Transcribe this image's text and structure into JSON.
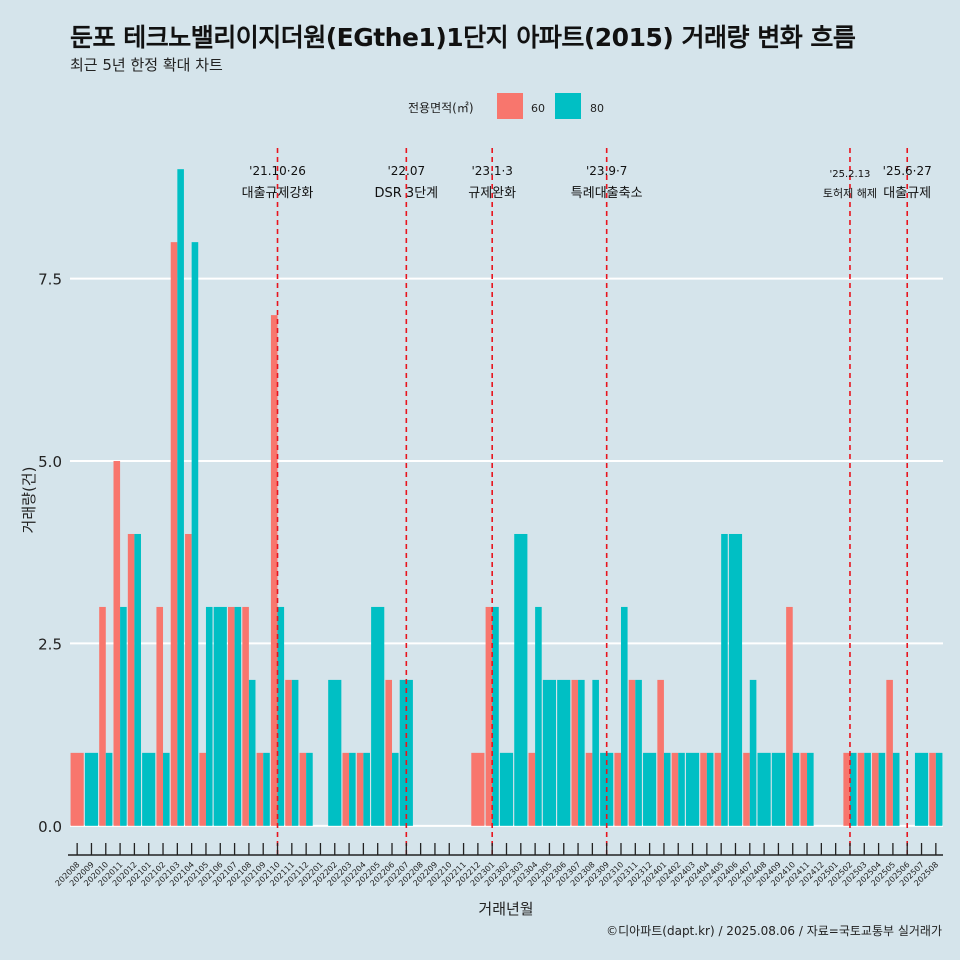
{
  "title": "둔포 테크노밸리이지더원(EGthe1)1단지 아파트(2015) 거래량 변화 흐름",
  "subtitle": "최근 5년 한정 확대 차트",
  "caption": "©디아파트(dapt.kr) / 2025.08.06 / 자료=국토교통부 실거래가",
  "colors": {
    "s60": "#f8766d",
    "s80": "#00bfc4",
    "vline": "#e8141e",
    "grid": "#ffffff",
    "background": "#d5e4eb"
  },
  "chart_data": {
    "type": "bar",
    "title": "둔포 테크노밸리이지더원(EGthe1)1단지 아파트(2015) 거래량 변화 흐름",
    "xlabel": "거래년월",
    "ylabel": "거래량(건)",
    "ylim": [
      -0.4,
      9.4
    ],
    "yticks": [
      0.0,
      2.5,
      5.0,
      7.5
    ],
    "ytick_labels": [
      "0.0",
      "2.5",
      "5.0",
      "7.5"
    ],
    "legend": {
      "title": "전용면적(㎡)",
      "position": "top",
      "labels": [
        "60",
        "80"
      ]
    },
    "categories": [
      "202008",
      "202009",
      "202010",
      "202011",
      "202012",
      "202101",
      "202102",
      "202103",
      "202104",
      "202105",
      "202106",
      "202107",
      "202108",
      "202109",
      "202110",
      "202111",
      "202112",
      "202201",
      "202202",
      "202203",
      "202204",
      "202205",
      "202206",
      "202207",
      "202208",
      "202209",
      "202210",
      "202211",
      "202212",
      "202301",
      "202302",
      "202303",
      "202304",
      "202305",
      "202306",
      "202307",
      "202308",
      "202309",
      "202310",
      "202311",
      "202312",
      "202401",
      "202402",
      "202403",
      "202404",
      "202405",
      "202406",
      "202407",
      "202408",
      "202409",
      "202410",
      "202411",
      "202412",
      "202501",
      "202502",
      "202503",
      "202504",
      "202505",
      "202506",
      "202507",
      "202508"
    ],
    "series": [
      {
        "name": "60",
        "values": [
          1,
          0,
          3,
          5,
          4,
          0,
          3,
          8,
          4,
          1,
          0,
          3,
          3,
          1,
          7,
          2,
          1,
          0,
          0,
          1,
          1,
          0,
          2,
          0,
          0,
          0,
          0,
          0,
          1,
          3,
          0,
          0,
          1,
          0,
          0,
          2,
          1,
          0,
          1,
          2,
          0,
          2,
          1,
          0,
          1,
          1,
          0,
          1,
          0,
          0,
          3,
          1,
          0,
          0,
          1,
          1,
          1,
          2,
          0,
          0,
          1
        ]
      },
      {
        "name": "80",
        "values": [
          0,
          1,
          1,
          3,
          4,
          1,
          1,
          9,
          8,
          3,
          3,
          3,
          2,
          1,
          3,
          2,
          1,
          0,
          2,
          1,
          1,
          3,
          1,
          2,
          0,
          0,
          0,
          0,
          0,
          3,
          1,
          4,
          3,
          2,
          2,
          2,
          2,
          1,
          3,
          2,
          1,
          1,
          1,
          1,
          1,
          4,
          4,
          2,
          1,
          1,
          1,
          1,
          0,
          0,
          1,
          1,
          1,
          1,
          0,
          1,
          1
        ]
      }
    ],
    "events": [
      {
        "date": "'21.10·26",
        "label": "대출규제강화",
        "category": "202110"
      },
      {
        "date": "'22.07",
        "label": "DSR 3단계",
        "category": "202207"
      },
      {
        "date": "'23.1·3",
        "label": "규제완화",
        "category": "202301"
      },
      {
        "date": "'23.9·7",
        "label": "특례대출축소",
        "category": "202309"
      },
      {
        "date": "'25.2.13",
        "label": "토허제 해제",
        "category": "202502"
      },
      {
        "date": "'25.6·27",
        "label": "대출규제",
        "category": "202506"
      }
    ]
  }
}
